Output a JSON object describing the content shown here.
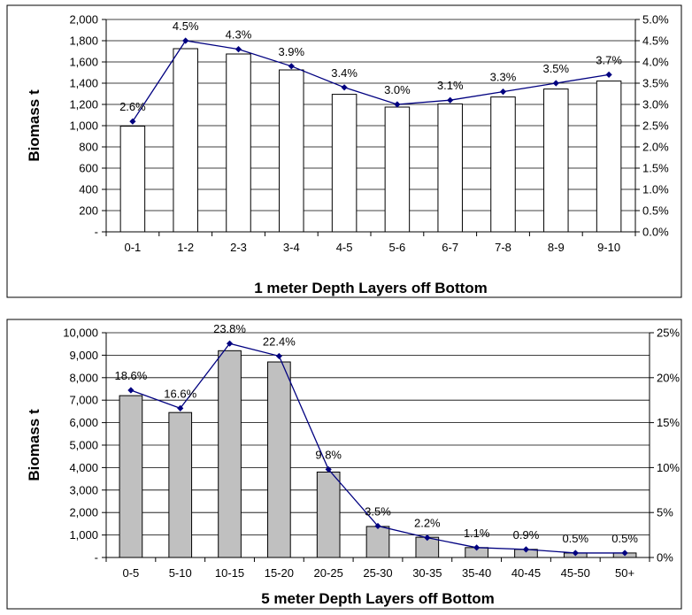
{
  "chart_data": [
    {
      "type": "bar",
      "secondary_type": "line",
      "categories": [
        "0-1",
        "1-2",
        "2-3",
        "3-4",
        "4-5",
        "5-6",
        "6-7",
        "7-8",
        "8-9",
        "9-10"
      ],
      "series": [
        {
          "values": [
            995,
            1725,
            1675,
            1525,
            1295,
            1175,
            1205,
            1270,
            1345,
            1420
          ],
          "color": "#ffffff",
          "axis": "primary",
          "kind": "bar"
        },
        {
          "values": [
            2.6,
            4.5,
            4.3,
            3.9,
            3.4,
            3.0,
            3.1,
            3.3,
            3.5,
            3.7
          ],
          "color": "#000080",
          "axis": "secondary",
          "kind": "line"
        }
      ],
      "data_labels": [
        "2.6%",
        "4.5%",
        "4.3%",
        "3.9%",
        "3.4%",
        "3.0%",
        "3.1%",
        "3.3%",
        "3.5%",
        "3.7%"
      ],
      "xlabel": "1 meter Depth Layers off Bottom",
      "ylabel": "Biomass t",
      "ylim": [
        0,
        2000
      ],
      "y_ticks": [
        "-",
        "200",
        "400",
        "600",
        "800",
        "1,000",
        "1,200",
        "1,400",
        "1,600",
        "1,800",
        "2,000"
      ],
      "y2lim": [
        0,
        5
      ],
      "y2_ticks": [
        "0.0%",
        "0.5%",
        "1.0%",
        "1.5%",
        "2.0%",
        "2.5%",
        "3.0%",
        "3.5%",
        "4.0%",
        "4.5%",
        "5.0%"
      ],
      "grid": true,
      "bar_fill": "#ffffff"
    },
    {
      "type": "bar",
      "secondary_type": "line",
      "categories": [
        "0-5",
        "5-10",
        "10-15",
        "15-20",
        "20-25",
        "25-30",
        "30-35",
        "35-40",
        "40-45",
        "45-50",
        "50+"
      ],
      "series": [
        {
          "values": [
            7200,
            6450,
            9200,
            8700,
            3800,
            1380,
            900,
            440,
            360,
            200,
            200
          ],
          "color": "#c0c0c0",
          "axis": "primary",
          "kind": "bar"
        },
        {
          "values": [
            18.6,
            16.6,
            23.8,
            22.4,
            9.8,
            3.5,
            2.2,
            1.1,
            0.9,
            0.5,
            0.5
          ],
          "color": "#000080",
          "axis": "secondary",
          "kind": "line"
        }
      ],
      "data_labels": [
        "18.6%",
        "16.6%",
        "23.8%",
        "22.4%",
        "9.8%",
        "3.5%",
        "2.2%",
        "1.1%",
        "0.9%",
        "0.5%",
        "0.5%"
      ],
      "xlabel": "5 meter Depth Layers off Bottom",
      "ylabel": "Biomass t",
      "ylim": [
        0,
        10000
      ],
      "y_ticks": [
        "-",
        "1,000",
        "2,000",
        "3,000",
        "4,000",
        "5,000",
        "6,000",
        "7,000",
        "8,000",
        "9,000",
        "10,000"
      ],
      "y2lim": [
        0,
        25
      ],
      "y2_ticks": [
        "0%",
        "5%",
        "10%",
        "15%",
        "20%",
        "25%"
      ],
      "grid": true,
      "bar_fill": "#c0c0c0"
    }
  ]
}
